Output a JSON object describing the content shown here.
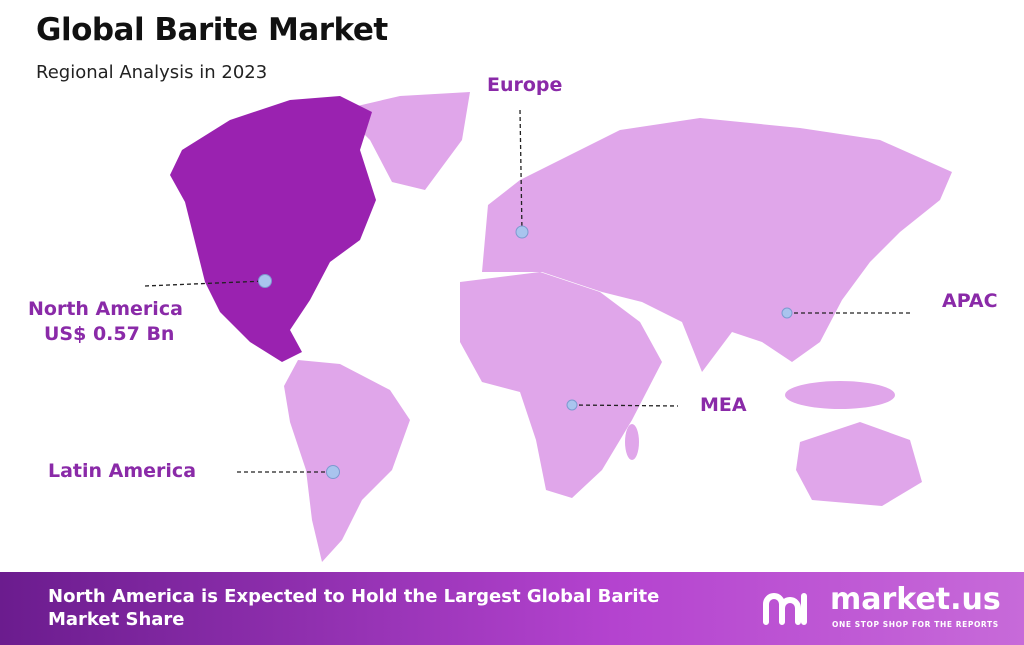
{
  "header": {
    "title": "Global Barite Market",
    "subtitle": "Regional Analysis in 2023"
  },
  "regions": [
    {
      "label": "Europe"
    },
    {
      "label": "North America",
      "value": "US$ 0.57 Bn"
    },
    {
      "label": "APAC"
    },
    {
      "label": "MEA"
    },
    {
      "label": "Latin America"
    }
  ],
  "footer": {
    "text": "North America is Expected to Hold the Largest Global Barite Market Share",
    "brand": {
      "name": "market.us",
      "tagline": "ONE STOP SHOP FOR THE REPORTS"
    }
  }
}
